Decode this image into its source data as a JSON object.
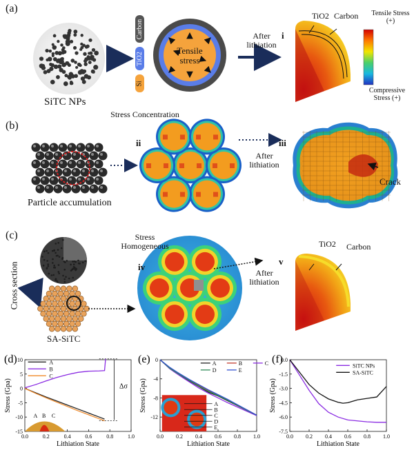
{
  "panels": {
    "a": {
      "label": "(a)",
      "sitc_nps": "SiTC NPs",
      "layers": [
        "Carbon",
        "TiO2",
        "Si"
      ],
      "tensile_stress_center": "Tensile stress",
      "after_lithiation": "After lithiation",
      "roman": "i",
      "tio2": "TiO2",
      "carbon": "Carbon",
      "scale_top": "Tensile Stress (+)",
      "scale_bottom": "Compressive Stress (+)"
    },
    "b": {
      "label": "(b)",
      "particle_accumulation": "Particle accumulation",
      "stress_concentration": "Stress Concentration",
      "roman_ii": "ii",
      "after_lithiation": "After lithiation",
      "roman_iii": "iii",
      "crack": "Crack"
    },
    "c": {
      "label": "(c)",
      "cross_section": "Cross section",
      "sa_sitc": "SA-SiTC",
      "stress_homogeneous": "Stress Homogeneous",
      "roman_iv": "iv",
      "after_lithiation": "After lithiation",
      "roman_v": "v",
      "tio2": "TiO2",
      "carbon": "Carbon"
    }
  },
  "chart_data": [
    {
      "panel": "(d)",
      "type": "line",
      "xlabel": "Lithiation State",
      "ylabel": "Stress (Gpa)",
      "xlim": [
        0,
        1.0
      ],
      "ylim": [
        -15,
        10
      ],
      "xticks": [
        "0.0",
        "0.2",
        "0.4",
        "0.6",
        "0.8",
        "1.0"
      ],
      "yticks": [
        "10",
        "5",
        "0",
        "-5",
        "-10",
        "-15"
      ],
      "annotation": "Δσ",
      "inset_labels": [
        "A",
        "B",
        "C"
      ],
      "series": [
        {
          "name": "A",
          "color": "#222222",
          "x": [
            0,
            0.1,
            0.2,
            0.3,
            0.4,
            0.5,
            0.6,
            0.7,
            0.75
          ],
          "y": [
            0,
            -1.5,
            -3,
            -4.4,
            -5.8,
            -7.2,
            -8.6,
            -10,
            -10.7
          ]
        },
        {
          "name": "B",
          "color": "#8a2be2",
          "x": [
            0,
            0.1,
            0.2,
            0.3,
            0.4,
            0.5,
            0.6,
            0.7,
            0.75,
            0.76
          ],
          "y": [
            0.2,
            1.3,
            2.6,
            3.8,
            4.8,
            5.6,
            6.0,
            6.1,
            6.2,
            10.3
          ]
        },
        {
          "name": "C",
          "color": "#f08a2a",
          "x": [
            0,
            0.1,
            0.2,
            0.3,
            0.4,
            0.5,
            0.6,
            0.7,
            0.75
          ],
          "y": [
            0,
            -1.7,
            -3.3,
            -4.8,
            -6.3,
            -7.8,
            -9.2,
            -10.6,
            -11.3
          ]
        }
      ]
    },
    {
      "panel": "(e)",
      "type": "line",
      "xlabel": "Lithiation State",
      "ylabel": "Stress (Gpa)",
      "xlim": [
        0,
        1.0
      ],
      "ylim": [
        -15,
        0
      ],
      "xticks": [
        "0.0",
        "0.2",
        "0.4",
        "0.6",
        "0.8",
        "1.0"
      ],
      "yticks": [
        "0",
        "-4",
        "-8",
        "-12"
      ],
      "inset_labels": [
        "A",
        "B",
        "C",
        "D",
        "E"
      ],
      "series": [
        {
          "name": "A",
          "color": "#222222",
          "x": [
            0,
            0.1,
            0.2,
            0.3,
            0.4,
            0.5,
            0.6,
            0.7,
            0.8,
            0.9,
            1.0
          ],
          "y": [
            0,
            -1.8,
            -3.2,
            -4.4,
            -5.6,
            -6.8,
            -7.6,
            -8.6,
            -9.6,
            -10.6,
            -11.6
          ]
        },
        {
          "name": "B",
          "color": "#c0392b",
          "x": [
            0,
            0.1,
            0.2,
            0.3,
            0.4,
            0.5,
            0.6,
            0.7,
            0.8,
            0.9,
            1.0
          ],
          "y": [
            0,
            -1.7,
            -3.0,
            -4.2,
            -5.3,
            -6.4,
            -7.4,
            -8.4,
            -9.5,
            -10.5,
            -11.6
          ]
        },
        {
          "name": "C",
          "color": "#8a2be2",
          "x": [
            0,
            0.1,
            0.2,
            0.3,
            0.4,
            0.5,
            0.6,
            0.7,
            0.8,
            0.9,
            1.0
          ],
          "y": [
            0,
            -1.9,
            -3.3,
            -4.6,
            -5.9,
            -7.0,
            -8.0,
            -9.0,
            -9.9,
            -10.8,
            -11.7
          ]
        },
        {
          "name": "D",
          "color": "#2e8b57",
          "x": [
            0,
            0.1,
            0.2,
            0.3,
            0.4,
            0.5,
            0.6,
            0.7,
            0.8,
            0.9,
            1.0
          ],
          "y": [
            0,
            -1.8,
            -3.1,
            -4.3,
            -5.5,
            -6.6,
            -7.5,
            -8.5,
            -9.5,
            -10.6,
            -11.6
          ]
        },
        {
          "name": "E",
          "color": "#3050d0",
          "x": [
            0,
            0.1,
            0.2,
            0.3,
            0.4,
            0.5,
            0.6,
            0.7,
            0.8,
            0.9,
            1.0
          ],
          "y": [
            0,
            -1.6,
            -2.9,
            -4.1,
            -5.2,
            -6.3,
            -7.3,
            -8.3,
            -9.4,
            -10.5,
            -11.6
          ]
        }
      ]
    },
    {
      "panel": "(f)",
      "type": "line",
      "xlabel": "Lithiation State",
      "ylabel": "Stress (Gpa)",
      "xlim": [
        0,
        1.0
      ],
      "ylim": [
        -7.5,
        0
      ],
      "xticks": [
        "0.0",
        "0.2",
        "0.4",
        "0.6",
        "0.8",
        "1.0"
      ],
      "yticks": [
        "0.0",
        "-1.5",
        "-3.0",
        "-4.5",
        "-6.0",
        "-7.5"
      ],
      "legend": "top-right",
      "series": [
        {
          "name": "SiTC NPs",
          "color": "#8a2be2",
          "x": [
            0,
            0.1,
            0.2,
            0.3,
            0.4,
            0.5,
            0.6,
            0.7,
            0.8,
            0.9,
            1.0
          ],
          "y": [
            0,
            -1.6,
            -3.2,
            -4.6,
            -5.5,
            -6.0,
            -6.3,
            -6.4,
            -6.5,
            -6.55,
            -6.55
          ]
        },
        {
          "name": "SA-SiTC",
          "color": "#111111",
          "x": [
            0,
            0.1,
            0.2,
            0.3,
            0.4,
            0.5,
            0.55,
            0.6,
            0.7,
            0.8,
            0.9,
            1.0
          ],
          "y": [
            0,
            -1.3,
            -2.6,
            -3.5,
            -4.1,
            -4.45,
            -4.55,
            -4.5,
            -4.2,
            -4.05,
            -3.9,
            -2.8
          ]
        }
      ]
    }
  ],
  "colors": {
    "navy_arrow": "#1a2d5a",
    "silicon": "#f5a33c",
    "tio2": "#5a7de8",
    "carbon": "#444444"
  }
}
